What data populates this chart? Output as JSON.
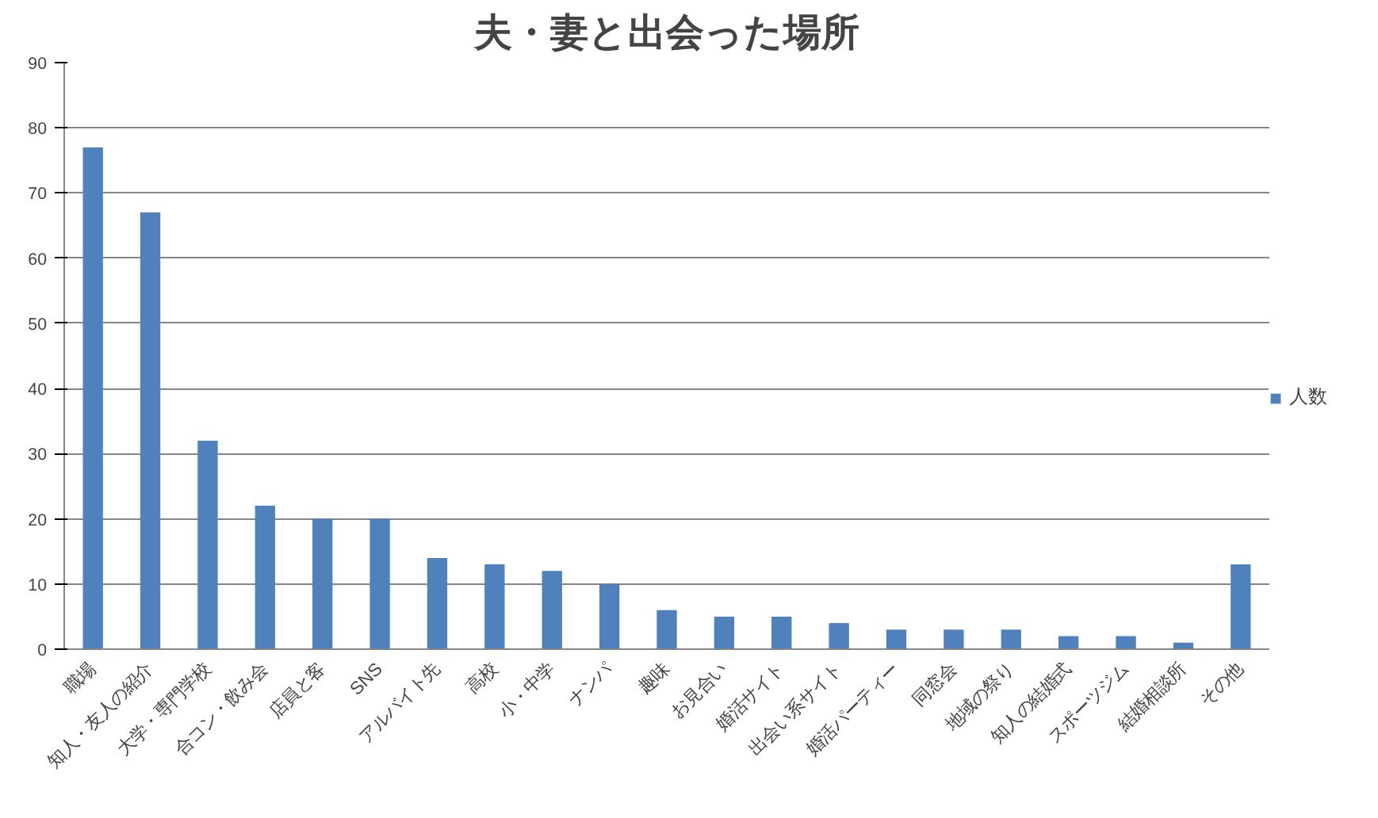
{
  "chart_data": {
    "type": "bar",
    "title": "夫・妻と出会った場所",
    "categories": [
      "職場",
      "知人・友人の紹介",
      "大学・専門学校",
      "合コン・飲み会",
      "店員と客",
      "SNS",
      "アルバイト先",
      "高校",
      "小・中学",
      "ナンパ",
      "趣味",
      "お見合い",
      "婚活サイト",
      "出会い系サイト",
      "婚活パーティー",
      "同窓会",
      "地域の祭り",
      "知人の結婚式",
      "スポーツジム",
      "結婚相談所",
      "その他"
    ],
    "series": [
      {
        "name": "人数",
        "color": "#4f81bd",
        "values": [
          77,
          67,
          32,
          22,
          20,
          20,
          14,
          13,
          12,
          10,
          6,
          5,
          5,
          4,
          3,
          3,
          3,
          2,
          2,
          1,
          13
        ]
      }
    ],
    "ylim": [
      0,
      90
    ],
    "yticks": [
      0,
      10,
      20,
      30,
      40,
      50,
      60,
      70,
      80,
      90
    ],
    "grid": "y",
    "legend": "right"
  }
}
